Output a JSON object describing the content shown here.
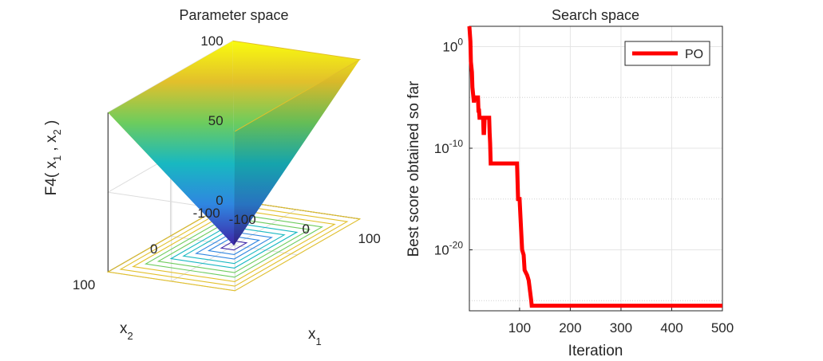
{
  "chart_data": [
    {
      "type": "surface",
      "title": "Parameter space",
      "function_label": "F4",
      "surface": "max(|x1|, |x2|)",
      "xlabel": "x",
      "xlabel_sub": "1",
      "ylabel": "x",
      "ylabel_sub": "2",
      "zlabel_parts": [
        "F4( x",
        "1",
        " , x",
        "2",
        " )"
      ],
      "xlim": [
        -100,
        100
      ],
      "ylim": [
        -100,
        100
      ],
      "zlim": [
        0,
        100
      ],
      "x_ticks": [
        "-100",
        "0",
        "100"
      ],
      "y_ticks": [
        "-100",
        "0",
        "100"
      ],
      "z_ticks": [
        "0",
        "50",
        "100"
      ],
      "contour_levels": [
        10,
        20,
        30,
        40,
        50,
        60,
        70,
        80,
        90,
        100
      ],
      "colormap": [
        "#3e26a8",
        "#2f86e0",
        "#18b8c1",
        "#6dcc5d",
        "#e2c02b",
        "#f9fb0e"
      ],
      "grid": true
    },
    {
      "type": "line",
      "title": "Search space",
      "xlabel": "Iteration",
      "ylabel": "Best score obtained so far",
      "xlim": [
        1,
        500
      ],
      "ylim_log10": [
        -26,
        2
      ],
      "yscale": "log",
      "x_ticks": [
        "100",
        "200",
        "300",
        "400",
        "500"
      ],
      "y_tick_base": "10",
      "y_tick_exponents": [
        "0",
        "-10",
        "-20"
      ],
      "grid": true,
      "legend_position": "top-right",
      "series": [
        {
          "name": "PO",
          "color": "#ff0000",
          "x_points": [
            1,
            3,
            4,
            6,
            7,
            10,
            11,
            18,
            19,
            20,
            21,
            28,
            29,
            30,
            31,
            33,
            40,
            41,
            42,
            43,
            95,
            97,
            100,
            103,
            105,
            108,
            110,
            115,
            118,
            123,
            124,
            500
          ],
          "log10_y": [
            2.0,
            0.5,
            -1.5,
            -2.5,
            -4.0,
            -5.5,
            -5.0,
            -5.0,
            -6.3,
            -6.3,
            -7.0,
            -7.0,
            -8.5,
            -8.5,
            -7.0,
            -7.0,
            -7.0,
            -8.5,
            -9.5,
            -11.5,
            -11.5,
            -15.0,
            -15.0,
            -18.0,
            -20.0,
            -20.5,
            -22.0,
            -22.5,
            -23.0,
            -25.0,
            -25.5,
            -25.5
          ]
        }
      ]
    }
  ]
}
